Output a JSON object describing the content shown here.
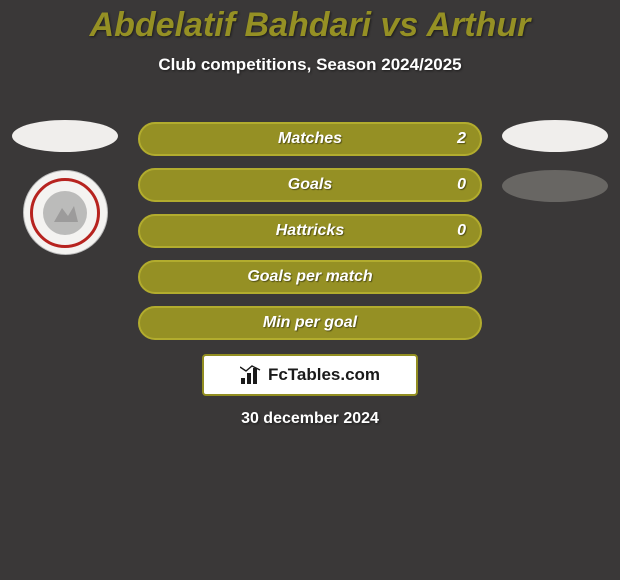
{
  "background_color": "#3a3838",
  "title": {
    "text": "Abdelatif Bahdari vs Arthur",
    "color": "#959024",
    "fontsize": 34
  },
  "subtitle": {
    "text": "Club competitions, Season 2024/2025",
    "color": "#ffffff",
    "fontsize": 17
  },
  "left_player": {
    "ellipse_color": "#f0eeec",
    "crest_bg": "#f4f3f1",
    "crest_ring": "#b7231f",
    "crest_inner": "#8e8e8e"
  },
  "right_player": {
    "ellipse_color_1": "#f0eeec",
    "ellipse_color_2": "#686663"
  },
  "bars": {
    "fill_color": "#959024",
    "border_color": "#b2ac2e",
    "label_color": "#ffffff",
    "value_color": "#ffffff",
    "height": 34,
    "radius": 18,
    "gap": 12,
    "items": [
      {
        "label": "Matches",
        "value": "2"
      },
      {
        "label": "Goals",
        "value": "0"
      },
      {
        "label": "Hattricks",
        "value": "0"
      },
      {
        "label": "Goals per match",
        "value": ""
      },
      {
        "label": "Min per goal",
        "value": ""
      }
    ]
  },
  "footer": {
    "badge_bg": "#ffffff",
    "badge_border": "#928e21",
    "text": "FcTables.com",
    "text_color": "#1a1a1a",
    "icon_color": "#1a1a1a"
  },
  "date": {
    "text": "30 december 2024",
    "color": "#ffffff"
  }
}
